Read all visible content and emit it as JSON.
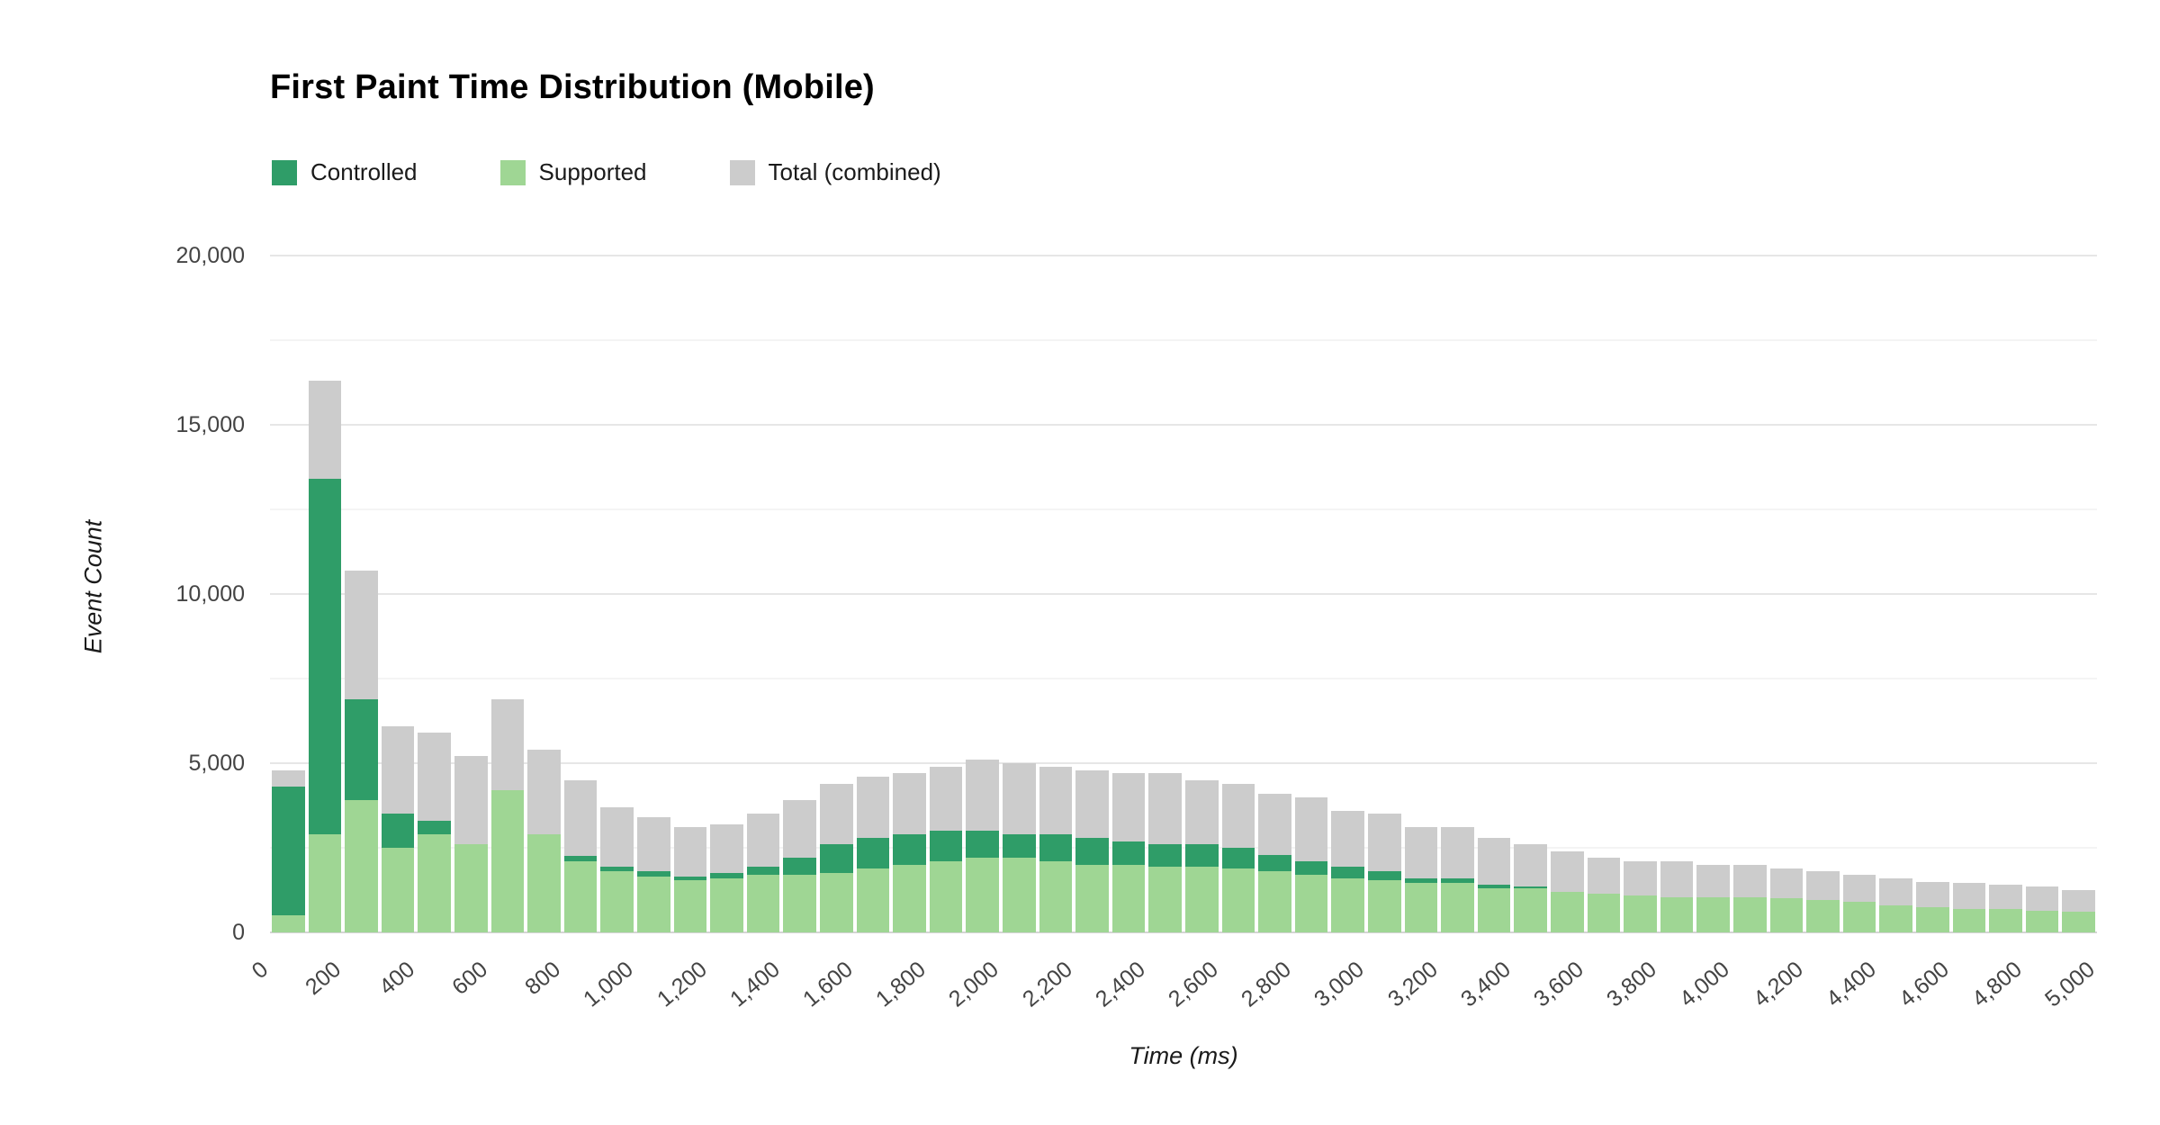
{
  "chart_data": {
    "type": "bar",
    "title": "First Paint Time Distribution (Mobile)",
    "xlabel": "Time (ms)",
    "ylabel": "Event Count",
    "bin_width_ms": 100,
    "xlim": [
      0,
      5000
    ],
    "ylim": [
      0,
      20000
    ],
    "grid": true,
    "legend_position": "top-left",
    "y_ticks": [
      0,
      5000,
      10000,
      15000,
      20000
    ],
    "y_minor_ticks": [
      2500,
      7500,
      12500,
      17500
    ],
    "x_ticks": [
      0,
      200,
      400,
      600,
      800,
      1000,
      1200,
      1400,
      1600,
      1800,
      2000,
      2200,
      2400,
      2600,
      2800,
      3000,
      3200,
      3400,
      3600,
      3800,
      4000,
      4200,
      4400,
      4600,
      4800,
      5000
    ],
    "legend": [
      {
        "label": "Controlled",
        "color": "#2f9d68"
      },
      {
        "label": "Supported",
        "color": "#9fd694"
      },
      {
        "label": "Total (combined)",
        "color": "#cccccc"
      }
    ],
    "stacking": "Supported at bottom, Controlled stacked on top, Total (combined) drawn behind as full-height bar",
    "series": [
      {
        "name": "Supported",
        "color": "#9fd694",
        "values": [
          500,
          2900,
          3900,
          2500,
          2900,
          2600,
          4200,
          2900,
          2100,
          1800,
          1650,
          1550,
          1600,
          1700,
          1700,
          1750,
          1900,
          2000,
          2100,
          2200,
          2200,
          2100,
          2000,
          2000,
          1950,
          1950,
          1900,
          1800,
          1700,
          1600,
          1550,
          1450,
          1450,
          1300,
          1300,
          1200,
          1150,
          1100,
          1050,
          1050,
          1050,
          1000,
          950,
          900,
          800,
          750,
          700,
          700,
          650,
          600
        ]
      },
      {
        "name": "Controlled",
        "color": "#2f9d68",
        "values": [
          3800,
          10500,
          3000,
          1000,
          400,
          0,
          0,
          0,
          150,
          150,
          150,
          100,
          150,
          250,
          500,
          850,
          900,
          900,
          900,
          800,
          700,
          800,
          800,
          700,
          650,
          650,
          600,
          500,
          400,
          350,
          250,
          150,
          150,
          100,
          50,
          0,
          0,
          0,
          0,
          0,
          0,
          0,
          0,
          0,
          0,
          0,
          0,
          0,
          0,
          0
        ]
      },
      {
        "name": "Total (combined)",
        "color": "#cccccc",
        "values": [
          4800,
          16300,
          10700,
          6100,
          5900,
          5200,
          6900,
          5400,
          4500,
          3700,
          3400,
          3100,
          3200,
          3500,
          3900,
          4400,
          4600,
          4700,
          4900,
          5100,
          5000,
          4900,
          4800,
          4700,
          4700,
          4500,
          4400,
          4100,
          4000,
          3600,
          3500,
          3100,
          3100,
          2800,
          2600,
          2400,
          2200,
          2100,
          2100,
          2000,
          2000,
          1900,
          1800,
          1700,
          1600,
          1500,
          1450,
          1400,
          1350,
          1250
        ]
      }
    ],
    "colors": {
      "background": "#ffffff",
      "grid_major": "#e6e6e6",
      "grid_minor": "#f4f4f4",
      "baseline": "#d4d4d4",
      "tick_text": "#444444"
    }
  }
}
